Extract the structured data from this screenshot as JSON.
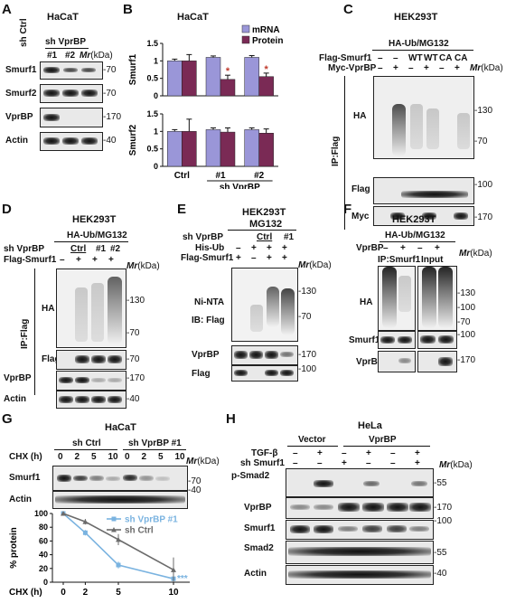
{
  "panels": {
    "A": {
      "letter": "A",
      "cell": "HaCaT",
      "sh_ctrl": "sh Ctrl",
      "sh_vprbp": "sh VprBP",
      "lane1": "#1",
      "lane2": "#2",
      "mr": "Mr",
      "kda": "(kDa)",
      "blots": [
        {
          "label": "Smurf1",
          "marker": "70"
        },
        {
          "label": "Smurf2",
          "marker": "70"
        },
        {
          "label": "VprBP",
          "marker": "170"
        },
        {
          "label": "Actin",
          "marker": "40"
        }
      ]
    },
    "B": {
      "letter": "B",
      "cell": "HaCaT",
      "legend": [
        "mRNA",
        "Protein"
      ],
      "colors": {
        "mrna": "#9a96d8",
        "protein": "#7a2a55"
      },
      "xcat": [
        "Ctrl",
        "#1",
        "#2"
      ],
      "xsub": "sh VprBP",
      "sig": "*"
    },
    "C": {
      "letter": "C",
      "cell": "HEK293T",
      "treat": "HA-Ub/MG132",
      "row1_label": "Flag-Smurf1",
      "row1": [
        "–",
        "–",
        "WT",
        "WT",
        "CA",
        "CA"
      ],
      "row2_label": "Myc-VprBP",
      "row2": [
        "–",
        "+",
        "–",
        "+",
        "–",
        "+"
      ],
      "mr": "Mr",
      "kda": "(kDa)",
      "ip": "IP:Flag",
      "ha": "HA",
      "flag": "Flag",
      "myc": "Myc",
      "markers": [
        "130",
        "70",
        "100",
        "170"
      ]
    },
    "D": {
      "letter": "D",
      "cell": "HEK293T",
      "treat": "HA-Ub/MG132",
      "row1_label": "sh VprBP",
      "ctrl": "Ctrl",
      "lane1": "#1",
      "lane2": "#2",
      "row2_label": "Flag-Smurf1",
      "row2": [
        "–",
        "+",
        "+",
        "+"
      ],
      "mr": "Mr",
      "kda": "(kDa)",
      "ip": "IP:Flag",
      "ha": "HA",
      "flag": "Flag",
      "vprbp": "VprBP",
      "actin": "Actin",
      "markers": [
        "130",
        "70",
        "70",
        "170",
        "40"
      ]
    },
    "E": {
      "letter": "E",
      "cell": "HEK293T",
      "treat": "MG132",
      "row1_label": "sh VprBP",
      "ctrl": "Ctrl",
      "lane1": "#1",
      "row2_label": "His-Ub",
      "row2": [
        "–",
        "+",
        "+",
        "+"
      ],
      "row3_label": "Flag-Smurf1",
      "row3": [
        "+",
        "–",
        "+",
        "+"
      ],
      "mr": "Mr",
      "kda": "(kDa)",
      "ni": "Ni-NTA",
      "ib": "IB: Flag",
      "vprbp": "VprBP",
      "flag": "Flag",
      "markers": [
        "130",
        "70",
        "170",
        "100"
      ]
    },
    "F": {
      "letter": "F",
      "cell": "HEK293T",
      "treat": "HA-Ub/MG132",
      "row_label": "VprBP",
      "row": [
        "–",
        "+",
        "–",
        "+"
      ],
      "mr": "Mr",
      "kda": "(kDa)",
      "ip": "IP:Smurf1",
      "input": "Input",
      "ha": "HA",
      "smurf1": "Smurf1",
      "vprbp": "VprBP",
      "markers": [
        "130",
        "100",
        "70",
        "100",
        "170"
      ]
    },
    "G": {
      "letter": "G",
      "cell": "HaCaT",
      "sh_ctrl": "sh Ctrl",
      "sh_vprbp": "sh VprBP #1",
      "chx": "CHX (h)",
      "times": [
        "0",
        "2",
        "5",
        "10",
        "0",
        "2",
        "5",
        "10"
      ],
      "mr": "Mr",
      "kda": "(kDa)",
      "smurf1": "Smurf1",
      "actin": "Actin",
      "markers": [
        "70",
        "40"
      ],
      "sig": "***"
    },
    "H": {
      "letter": "H",
      "cell": "HeLa",
      "vector": "Vector",
      "vprbp_group": "VprBP",
      "row1_label": "TGF-β",
      "row1": [
        "–",
        "+",
        "–",
        "+",
        "–",
        "+"
      ],
      "row2_label": "sh Smurf1",
      "row2": [
        "–",
        "–",
        "+",
        "–",
        "–",
        "+"
      ],
      "mr": "Mr",
      "kda": "(kDa)",
      "blots": [
        {
          "label": "p-Smad2",
          "marker": "55"
        },
        {
          "label": "VprBP",
          "marker": "170"
        },
        {
          "label": "Smurf1",
          "marker": "100"
        },
        {
          "label": "Smad2",
          "marker": "55"
        },
        {
          "label": "Actin",
          "marker": "40"
        }
      ]
    }
  },
  "chart_data": [
    {
      "type": "bar",
      "panel": "B-top",
      "categories": [
        "Ctrl",
        "#1",
        "#2"
      ],
      "ylabel": "Smurf1",
      "ylim": [
        0,
        1.5
      ],
      "yticks": [
        "0",
        "0.5",
        "1",
        "1.5"
      ],
      "series": [
        {
          "name": "mRNA",
          "values": [
            1.0,
            1.1,
            1.1
          ],
          "errors": [
            0.05,
            0.04,
            0.05
          ]
        },
        {
          "name": "Protein",
          "values": [
            1.0,
            0.47,
            0.55
          ],
          "errors": [
            0.18,
            0.12,
            0.1
          ]
        }
      ]
    },
    {
      "type": "bar",
      "panel": "B-bottom",
      "categories": [
        "Ctrl",
        "#1",
        "#2"
      ],
      "ylabel": "Smurf2",
      "ylim": [
        0,
        1.5
      ],
      "yticks": [
        "0",
        "0.5",
        "1",
        "1.5"
      ],
      "series": [
        {
          "name": "mRNA",
          "values": [
            1.0,
            1.05,
            1.05
          ],
          "errors": [
            0.05,
            0.05,
            0.05
          ]
        },
        {
          "name": "Protein",
          "values": [
            1.0,
            0.98,
            0.95
          ],
          "errors": [
            0.35,
            0.12,
            0.12
          ]
        }
      ]
    },
    {
      "type": "line",
      "panel": "G-graph",
      "x": [
        0,
        2,
        5,
        10
      ],
      "xlabel": "CHX (h)",
      "ylabel": "% protein",
      "ylim": [
        0,
        100
      ],
      "yticks": [
        "0",
        "20",
        "40",
        "60",
        "80",
        "100"
      ],
      "series": [
        {
          "name": "sh VprBP #1",
          "values": [
            100,
            72,
            25,
            5
          ],
          "errors": [
            2,
            4,
            5,
            3
          ],
          "color": "#7ab3e0"
        },
        {
          "name": "sh Ctrl",
          "values": [
            100,
            88,
            62,
            18
          ],
          "errors": [
            2,
            4,
            8,
            18
          ],
          "color": "#6b6b6b"
        }
      ]
    }
  ]
}
